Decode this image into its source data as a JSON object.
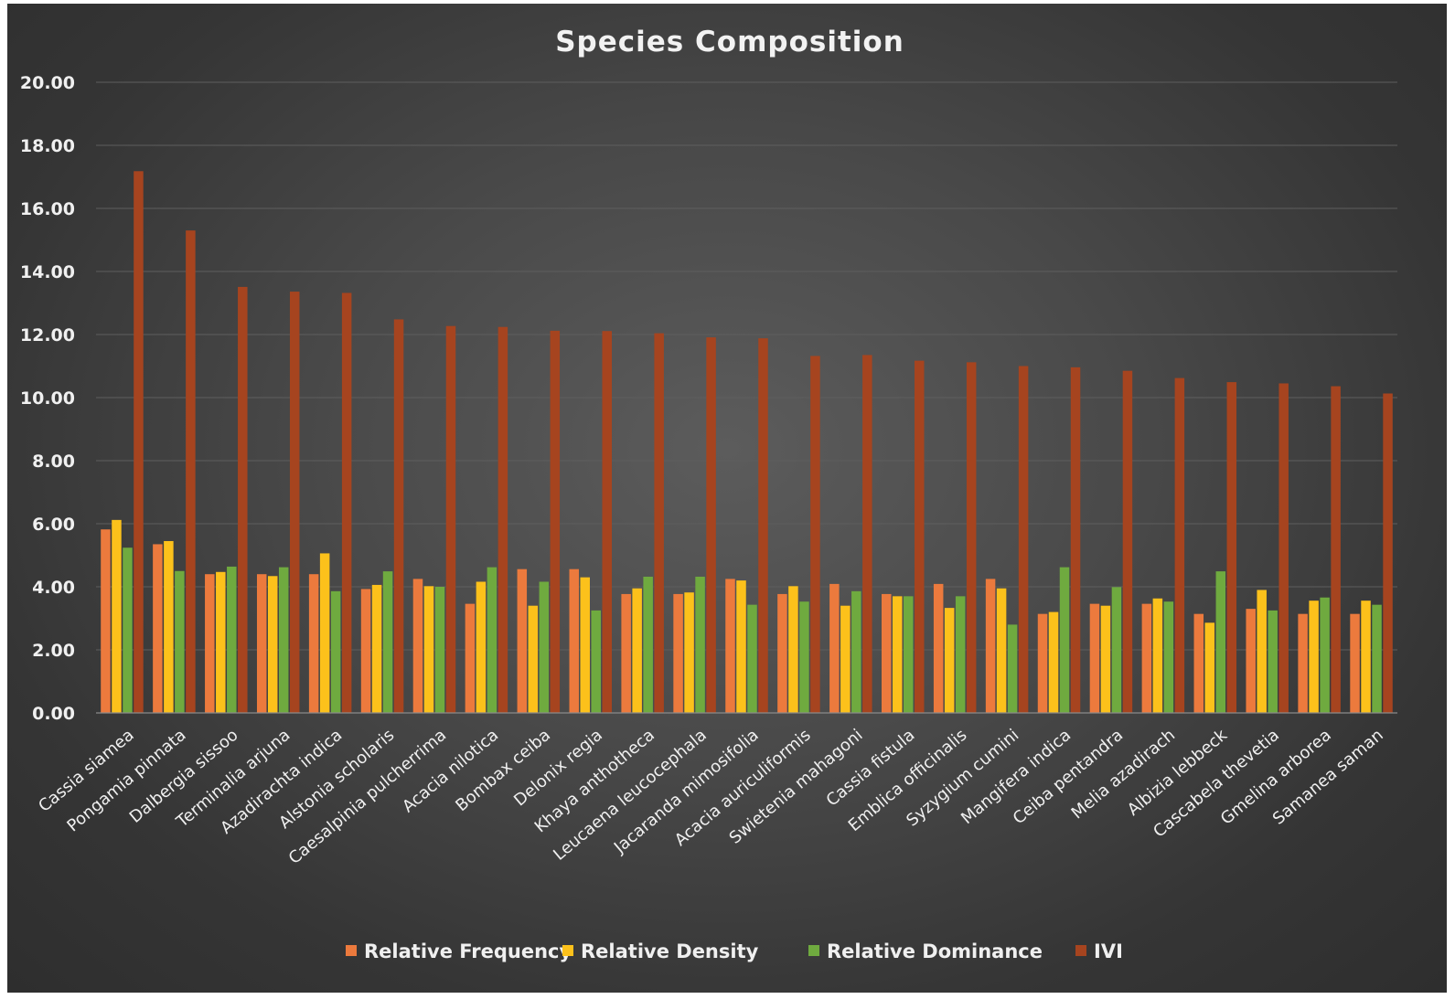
{
  "chart_data": {
    "type": "bar",
    "title": "Species Composition",
    "xlabel": "",
    "ylabel": "",
    "ylim": [
      0,
      20
    ],
    "y_ticks": [
      "0.00",
      "2.00",
      "4.00",
      "6.00",
      "8.00",
      "10.00",
      "12.00",
      "14.00",
      "16.00",
      "18.00",
      "20.00"
    ],
    "grid": true,
    "legend_position": "bottom",
    "categories": [
      "Cassia siamea",
      "Pongamia pinnata",
      "Dalbergia sissoo",
      "Terminalia arjuna",
      "Azadirachta indica",
      "Alstonia scholaris",
      "Caesalpinia pulcherrima",
      "Acacia nilotica",
      "Bombax ceiba",
      "Delonix regia",
      "Khaya anthotheca",
      "Leucaena leucocephala",
      "Jacaranda mimosifolia",
      "Acacia auriculiformis",
      "Swietenia mahagoni",
      "Cassia fistula",
      "Emblica officinalis",
      "Syzygium cumini",
      "Mangifera indica",
      "Ceiba pentandra",
      "Melia azadirach",
      "Albizia lebbeck",
      "Cascabela thevetia",
      "Gmelina arborea",
      "Samanea saman"
    ],
    "series": [
      {
        "name": "Relative Frequency",
        "color": "#ec7a3d",
        "values": [
          5.82,
          5.35,
          4.4,
          4.4,
          4.4,
          3.93,
          4.25,
          3.46,
          4.56,
          4.56,
          3.77,
          3.77,
          4.25,
          3.77,
          4.09,
          3.77,
          4.09,
          4.25,
          3.14,
          3.46,
          3.46,
          3.14,
          3.3,
          3.14,
          3.14
        ]
      },
      {
        "name": "Relative Density",
        "color": "#fcc11b",
        "values": [
          6.12,
          5.45,
          4.47,
          4.34,
          5.06,
          4.06,
          4.02,
          4.16,
          3.4,
          4.3,
          3.95,
          3.82,
          4.2,
          4.02,
          3.4,
          3.7,
          3.33,
          3.95,
          3.2,
          3.4,
          3.63,
          2.86,
          3.9,
          3.56,
          3.56
        ]
      },
      {
        "name": "Relative Dominance",
        "color": "#6faa3f",
        "values": [
          5.24,
          4.5,
          4.64,
          4.62,
          3.86,
          4.49,
          4.0,
          4.62,
          4.16,
          3.25,
          4.32,
          4.32,
          3.43,
          3.53,
          3.86,
          3.7,
          3.7,
          2.8,
          4.62,
          3.99,
          3.53,
          4.49,
          3.25,
          3.66,
          3.43
        ]
      },
      {
        "name": "IVI",
        "color": "#a6441f",
        "values": [
          17.18,
          15.3,
          13.51,
          13.36,
          13.32,
          12.48,
          12.27,
          12.24,
          12.12,
          12.11,
          12.04,
          11.91,
          11.88,
          11.32,
          11.35,
          11.17,
          11.12,
          11.0,
          10.96,
          10.85,
          10.62,
          10.49,
          10.45,
          10.36,
          10.13
        ]
      }
    ]
  }
}
